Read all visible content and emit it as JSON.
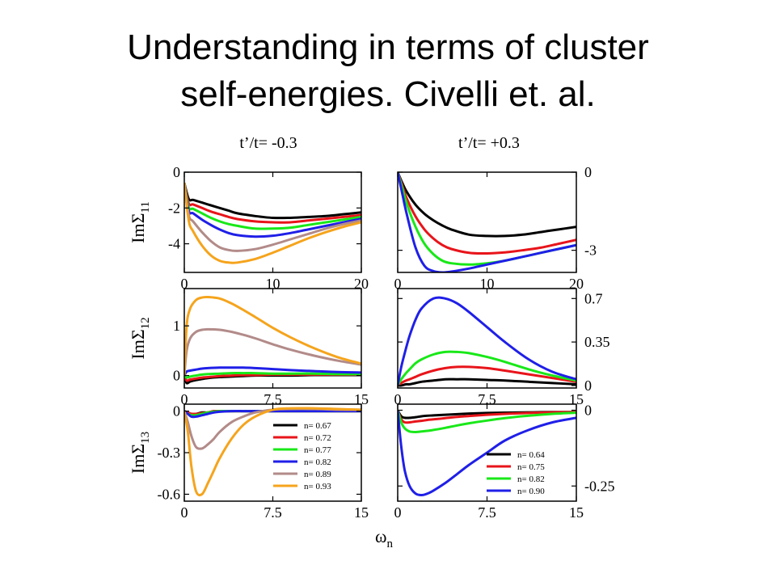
{
  "slide": {
    "title_line1": "Understanding in terms of cluster",
    "title_line2": "self-energies. Civelli et. al."
  },
  "figure": {
    "col_titles": [
      "t’/t= -0.3",
      "t’/t= +0.3"
    ],
    "row_ylabels": [
      "ImΣ11",
      "ImΣ12",
      "ImΣ13"
    ],
    "row_ylabel_main": "ImΣ",
    "row_ylabel_subs": [
      "11",
      "12",
      "13"
    ],
    "xlabel_main": "ω",
    "xlabel_sub": "n"
  },
  "colors": {
    "black": "#000000",
    "red": "#e8141a",
    "green": "#18e818",
    "blue": "#1f1fe8",
    "mauve": "#b28b89",
    "orange": "#f5a41c"
  },
  "chart_data": [
    {
      "type": "line",
      "panel": "left-top",
      "ylabel": "ImΣ11",
      "xlim": [
        0,
        20
      ],
      "ylim": [
        -5.6,
        0
      ],
      "xticks": [
        0,
        10,
        20
      ],
      "yticks": [
        0,
        -2,
        -4
      ],
      "yaxis_side": "left",
      "x": [
        0,
        0.5,
        1,
        2,
        3,
        4,
        5,
        6,
        8,
        10,
        12,
        14,
        16,
        18,
        20
      ],
      "series": [
        {
          "name": "n= 0.67",
          "color": "#000000",
          "values": [
            -0.6,
            -1.5,
            -1.55,
            -1.7,
            -1.85,
            -2.0,
            -2.15,
            -2.3,
            -2.45,
            -2.55,
            -2.55,
            -2.5,
            -2.45,
            -2.35,
            -2.25
          ]
        },
        {
          "name": "n= 0.72",
          "color": "#e8141a",
          "values": [
            -0.6,
            -1.75,
            -1.8,
            -2.0,
            -2.2,
            -2.35,
            -2.5,
            -2.62,
            -2.75,
            -2.8,
            -2.8,
            -2.7,
            -2.6,
            -2.5,
            -2.4
          ]
        },
        {
          "name": "n= 0.77",
          "color": "#18e818",
          "values": [
            -0.6,
            -1.95,
            -2.05,
            -2.3,
            -2.55,
            -2.75,
            -2.9,
            -3.0,
            -3.15,
            -3.15,
            -3.1,
            -2.95,
            -2.8,
            -2.65,
            -2.5
          ]
        },
        {
          "name": "n= 0.82",
          "color": "#1f1fe8",
          "values": [
            -0.6,
            -2.15,
            -2.3,
            -2.65,
            -2.95,
            -3.2,
            -3.4,
            -3.52,
            -3.6,
            -3.55,
            -3.4,
            -3.2,
            -3.0,
            -2.8,
            -2.6
          ]
        },
        {
          "name": "n= 0.89",
          "color": "#b28b89",
          "values": [
            -0.6,
            -2.4,
            -2.75,
            -3.35,
            -3.85,
            -4.2,
            -4.35,
            -4.4,
            -4.3,
            -4.05,
            -3.75,
            -3.45,
            -3.15,
            -2.9,
            -2.7
          ]
        },
        {
          "name": "n= 0.93",
          "color": "#f5a41c",
          "values": [
            -0.6,
            -2.7,
            -3.3,
            -4.1,
            -4.65,
            -4.95,
            -5.05,
            -5.05,
            -4.85,
            -4.5,
            -4.1,
            -3.7,
            -3.35,
            -3.05,
            -2.8
          ]
        }
      ]
    },
    {
      "type": "line",
      "panel": "right-top",
      "xlim": [
        0,
        20
      ],
      "ylim": [
        -3.85,
        0
      ],
      "xticks": [
        0,
        10,
        20
      ],
      "yticks": [
        0,
        -3
      ],
      "ytick_labels": [
        "0",
        "-3"
      ],
      "yaxis_side": "right",
      "x": [
        0,
        0.5,
        1,
        2,
        3,
        4,
        5,
        6,
        8,
        10,
        12,
        14,
        16,
        18,
        20
      ],
      "series": [
        {
          "name": "n= 0.64",
          "color": "#000000",
          "values": [
            0,
            -0.4,
            -0.75,
            -1.25,
            -1.6,
            -1.85,
            -2.05,
            -2.2,
            -2.4,
            -2.45,
            -2.45,
            -2.4,
            -2.3,
            -2.2,
            -2.1
          ]
        },
        {
          "name": "n= 0.75",
          "color": "#e8141a",
          "values": [
            0,
            -0.5,
            -1.0,
            -1.7,
            -2.2,
            -2.55,
            -2.8,
            -2.95,
            -3.1,
            -3.12,
            -3.08,
            -3.0,
            -2.9,
            -2.75,
            -2.6
          ]
        },
        {
          "name": "n= 0.82",
          "color": "#18e818",
          "values": [
            0,
            -0.6,
            -1.2,
            -2.1,
            -2.75,
            -3.15,
            -3.4,
            -3.5,
            -3.55,
            -3.5,
            -3.4,
            -3.25,
            -3.1,
            -2.95,
            -2.8
          ]
        },
        {
          "name": "n= 0.90",
          "color": "#1f1fe8",
          "values": [
            0,
            -0.8,
            -1.6,
            -2.9,
            -3.6,
            -3.8,
            -3.85,
            -3.82,
            -3.7,
            -3.55,
            -3.4,
            -3.25,
            -3.1,
            -2.95,
            -2.8
          ]
        }
      ]
    },
    {
      "type": "line",
      "panel": "left-middle",
      "ylabel": "ImΣ12",
      "xlim": [
        0,
        15
      ],
      "ylim": [
        -0.25,
        1.75
      ],
      "xticks": [
        0,
        7.5,
        15
      ],
      "yticks": [
        0,
        1
      ],
      "yaxis_side": "left",
      "x": [
        0,
        0.2,
        0.5,
        1,
        1.5,
        2,
        3,
        4,
        5,
        6,
        7.5,
        9,
        11,
        13,
        15
      ],
      "series": [
        {
          "name": "n= 0.67",
          "color": "#000000",
          "values": [
            0,
            -0.15,
            -0.12,
            -0.09,
            -0.07,
            -0.05,
            -0.03,
            -0.02,
            -0.01,
            0.0,
            0.0,
            0.0,
            0.01,
            0.01,
            0.01
          ]
        },
        {
          "name": "n= 0.72",
          "color": "#e8141a",
          "values": [
            0,
            -0.1,
            -0.08,
            -0.06,
            -0.04,
            -0.03,
            -0.01,
            0.0,
            0.01,
            0.01,
            0.02,
            0.02,
            0.02,
            0.02,
            0.02
          ]
        },
        {
          "name": "n= 0.77",
          "color": "#18e818",
          "values": [
            0,
            -0.04,
            -0.02,
            0.0,
            0.02,
            0.03,
            0.04,
            0.05,
            0.05,
            0.05,
            0.04,
            0.04,
            0.04,
            0.03,
            0.03
          ]
        },
        {
          "name": "n= 0.82",
          "color": "#1f1fe8",
          "values": [
            0,
            0.08,
            0.1,
            0.12,
            0.14,
            0.15,
            0.16,
            0.16,
            0.16,
            0.15,
            0.13,
            0.11,
            0.09,
            0.07,
            0.06
          ]
        },
        {
          "name": "n= 0.89",
          "color": "#b28b89",
          "values": [
            0,
            0.5,
            0.75,
            0.88,
            0.92,
            0.93,
            0.92,
            0.88,
            0.82,
            0.75,
            0.63,
            0.52,
            0.4,
            0.3,
            0.22
          ]
        },
        {
          "name": "n= 0.93",
          "color": "#f5a41c",
          "values": [
            0,
            1.0,
            1.35,
            1.52,
            1.57,
            1.58,
            1.55,
            1.45,
            1.32,
            1.18,
            0.96,
            0.77,
            0.55,
            0.37,
            0.24
          ]
        }
      ]
    },
    {
      "type": "line",
      "panel": "right-middle",
      "xlim": [
        0,
        15
      ],
      "ylim": [
        -0.02,
        0.78
      ],
      "xticks": [
        0,
        7.5,
        15
      ],
      "yticks": [
        0.7,
        0.35,
        0
      ],
      "ytick_labels": [
        "0.7",
        "0.35",
        "0"
      ],
      "yaxis_side": "right",
      "x": [
        0,
        0.3,
        0.7,
        1,
        1.5,
        2,
        3,
        4,
        5,
        6,
        7.5,
        9,
        11,
        13,
        15
      ],
      "series": [
        {
          "name": "n= 0.64",
          "color": "#000000",
          "values": [
            0,
            0.0,
            0.01,
            0.01,
            0.02,
            0.03,
            0.04,
            0.05,
            0.05,
            0.05,
            0.045,
            0.04,
            0.03,
            0.02,
            0.01
          ]
        },
        {
          "name": "n= 0.75",
          "color": "#e8141a",
          "values": [
            0,
            0.02,
            0.04,
            0.05,
            0.07,
            0.09,
            0.12,
            0.14,
            0.15,
            0.15,
            0.14,
            0.12,
            0.09,
            0.06,
            0.03
          ]
        },
        {
          "name": "n= 0.82",
          "color": "#18e818",
          "values": [
            0,
            0.05,
            0.1,
            0.13,
            0.18,
            0.21,
            0.25,
            0.27,
            0.27,
            0.26,
            0.23,
            0.19,
            0.13,
            0.08,
            0.04
          ]
        },
        {
          "name": "n= 0.90",
          "color": "#1f1fe8",
          "values": [
            0,
            0.15,
            0.3,
            0.4,
            0.53,
            0.62,
            0.7,
            0.7,
            0.66,
            0.59,
            0.47,
            0.35,
            0.21,
            0.11,
            0.05
          ]
        }
      ]
    },
    {
      "type": "line",
      "panel": "left-bottom",
      "ylabel": "ImΣ13",
      "xlim": [
        0,
        15
      ],
      "ylim": [
        -0.65,
        0.05
      ],
      "xticks": [
        0,
        7.5,
        15
      ],
      "yticks": [
        0,
        -0.3,
        -0.6
      ],
      "yaxis_side": "left",
      "legend": "inside-right",
      "x": [
        0,
        0.3,
        0.6,
        1,
        1.5,
        2,
        2.5,
        3,
        4,
        5,
        6,
        7.5,
        9,
        11,
        13,
        15
      ],
      "series": [
        {
          "name": "n= 0.67",
          "color": "#000000",
          "values": [
            0,
            -0.01,
            -0.02,
            -0.02,
            -0.01,
            -0.01,
            0.0,
            0.0,
            0.0,
            0.0,
            0.0,
            0.0,
            0.0,
            0.0,
            0.0,
            0.0
          ]
        },
        {
          "name": "n= 0.72",
          "color": "#e8141a",
          "values": [
            0,
            -0.01,
            -0.02,
            -0.02,
            -0.015,
            -0.01,
            0.0,
            0.0,
            0.0,
            0.0,
            0.0,
            0.0,
            0.0,
            0.0,
            0.0,
            0.0
          ]
        },
        {
          "name": "n= 0.77",
          "color": "#18e818",
          "values": [
            0,
            -0.02,
            -0.03,
            -0.03,
            -0.02,
            -0.01,
            -0.005,
            0.0,
            0.0,
            0.0,
            0.0,
            0.0,
            0.0,
            0.0,
            0.0,
            0.0
          ]
        },
        {
          "name": "n= 0.82",
          "color": "#1f1fe8",
          "values": [
            0,
            -0.02,
            -0.04,
            -0.04,
            -0.03,
            -0.02,
            -0.01,
            -0.005,
            0.0,
            0.0,
            0.0,
            0.0,
            0.0,
            0.0,
            0.0,
            0.0
          ]
        },
        {
          "name": "n= 0.89",
          "color": "#b28b89",
          "values": [
            0,
            -0.08,
            -0.18,
            -0.26,
            -0.27,
            -0.24,
            -0.2,
            -0.15,
            -0.08,
            -0.04,
            -0.01,
            0.01,
            0.015,
            0.015,
            0.01,
            0.01
          ]
        },
        {
          "name": "n= 0.93",
          "color": "#f5a41c",
          "values": [
            0,
            -0.15,
            -0.4,
            -0.58,
            -0.6,
            -0.52,
            -0.43,
            -0.34,
            -0.2,
            -0.1,
            -0.04,
            0.01,
            0.02,
            0.02,
            0.015,
            0.01
          ]
        }
      ]
    },
    {
      "type": "line",
      "panel": "right-bottom",
      "xlim": [
        0,
        15
      ],
      "ylim": [
        -0.3,
        0.02
      ],
      "xticks": [
        0,
        7.5,
        15
      ],
      "yticks": [
        0,
        -0.25
      ],
      "ytick_labels": [
        "0",
        "-0.25"
      ],
      "yaxis_side": "right",
      "legend": "inside-lower-right",
      "x": [
        0,
        0.3,
        0.6,
        1,
        1.5,
        2,
        2.5,
        3,
        4,
        5,
        6,
        7.5,
        9,
        11,
        13,
        15
      ],
      "series": [
        {
          "name": "n= 0.64",
          "color": "#000000",
          "values": [
            0,
            -0.02,
            -0.025,
            -0.025,
            -0.023,
            -0.02,
            -0.018,
            -0.017,
            -0.015,
            -0.013,
            -0.011,
            -0.009,
            -0.008,
            -0.007,
            -0.006,
            -0.006
          ]
        },
        {
          "name": "n= 0.75",
          "color": "#e8141a",
          "values": [
            0,
            -0.03,
            -0.04,
            -0.04,
            -0.037,
            -0.035,
            -0.032,
            -0.03,
            -0.026,
            -0.022,
            -0.019,
            -0.015,
            -0.012,
            -0.009,
            -0.007,
            -0.006
          ]
        },
        {
          "name": "n= 0.82",
          "color": "#18e818",
          "values": [
            0,
            -0.04,
            -0.06,
            -0.07,
            -0.072,
            -0.07,
            -0.068,
            -0.065,
            -0.058,
            -0.05,
            -0.043,
            -0.034,
            -0.026,
            -0.018,
            -0.012,
            -0.008
          ]
        },
        {
          "name": "n= 0.90",
          "color": "#1f1fe8",
          "values": [
            0,
            -0.12,
            -0.2,
            -0.25,
            -0.275,
            -0.28,
            -0.275,
            -0.265,
            -0.24,
            -0.21,
            -0.18,
            -0.14,
            -0.1,
            -0.065,
            -0.04,
            -0.025
          ]
        }
      ]
    }
  ]
}
